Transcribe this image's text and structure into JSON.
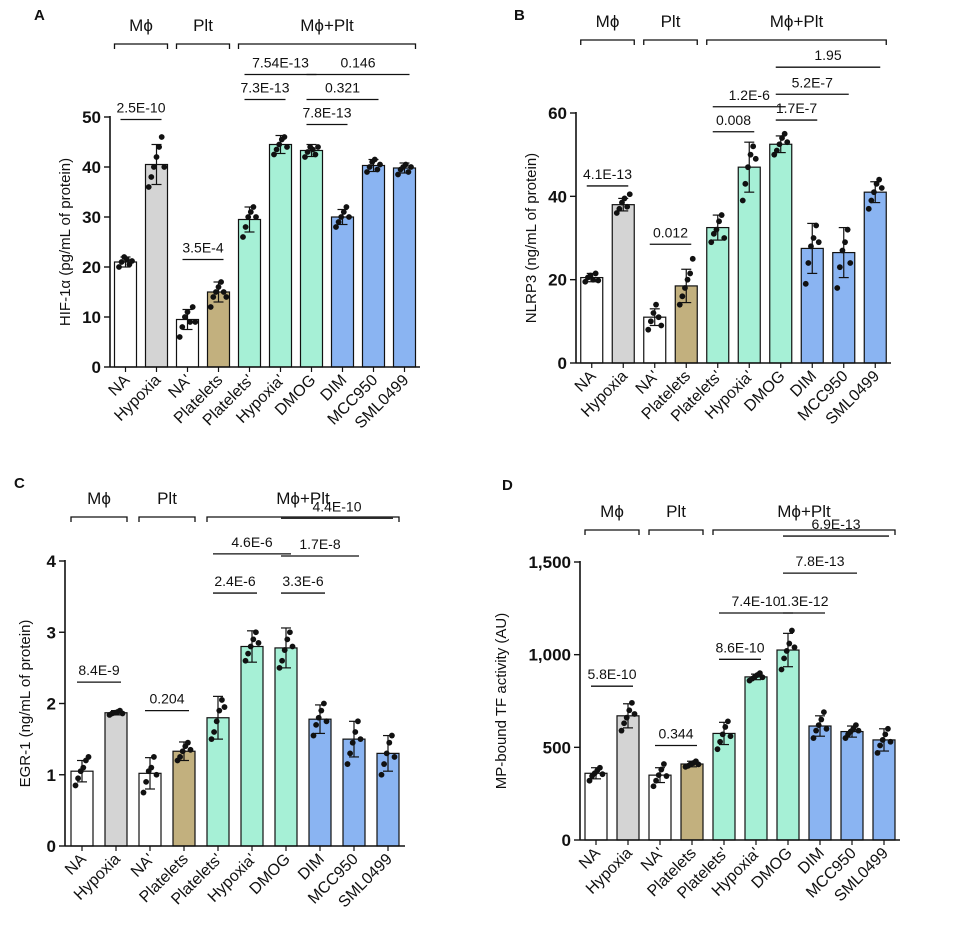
{
  "colors": {
    "white": "#ffffff",
    "gray": "#d4d4d4",
    "tan": "#c2b07e",
    "mint": "#a6f0d6",
    "blue": "#8ab4f2",
    "panel_letter": "#1f4e9c",
    "ink": "#111111"
  },
  "chart_data": [
    {
      "panel": "A",
      "type": "bar",
      "title": "",
      "ylabel": "HIF-1α (pg/mL of protein)",
      "ylim": [
        0,
        50
      ],
      "yticks": [
        0,
        10,
        20,
        30,
        40,
        50
      ],
      "ytick_labels": [
        "0",
        "10",
        "20",
        "30",
        "40",
        "50"
      ],
      "categories": [
        "NA",
        "Hypoxia",
        "NA'",
        "Platelets",
        "Platelets'",
        "Hypoxia'",
        "DMOG",
        "DIM",
        "MCC950",
        "SML0499"
      ],
      "colors": [
        "white",
        "gray",
        "white",
        "tan",
        "mint",
        "mint",
        "mint",
        "blue",
        "blue",
        "blue"
      ],
      "values": [
        21,
        40.5,
        9.5,
        15,
        29.5,
        44.5,
        43.3,
        30,
        40.3,
        39.8
      ],
      "errors": [
        1,
        4,
        2,
        2,
        2.5,
        1.8,
        1.2,
        1.5,
        1.2,
        1
      ],
      "points": [
        [
          20,
          21,
          22,
          21.5,
          20.5,
          21.2
        ],
        [
          36,
          38,
          40,
          42,
          44,
          46,
          40
        ],
        [
          6,
          8,
          10,
          11,
          9,
          12,
          9
        ],
        [
          12,
          14,
          15,
          16,
          17,
          15,
          14
        ],
        [
          26,
          28,
          30,
          31,
          32,
          30
        ],
        [
          42.5,
          43.5,
          44.5,
          45.5,
          46,
          44
        ],
        [
          42,
          43,
          44,
          43.5,
          42.5,
          44
        ],
        [
          28,
          29,
          30,
          31,
          32,
          30
        ],
        [
          39,
          40,
          41,
          41.5,
          39.5,
          40.5
        ],
        [
          38.5,
          39.5,
          40,
          40.5,
          39,
          40
        ]
      ],
      "groups": [
        {
          "label": "Mϕ",
          "from": 0,
          "to": 1
        },
        {
          "label": "Plt",
          "from": 2,
          "to": 3
        },
        {
          "label": "Mϕ+Plt",
          "from": 4,
          "to": 9
        }
      ],
      "comparisons": [
        {
          "label": "2.5E-10",
          "from": 0,
          "to": 1,
          "y": 49.5
        },
        {
          "label": "3.5E-4",
          "from": 2,
          "to": 3,
          "y": 21.5
        },
        {
          "label": "7.3E-13",
          "from": 4,
          "to": 5,
          "y": 53.5
        },
        {
          "label": "7.54E-13",
          "from": 4,
          "to": 6,
          "y": 58.5
        },
        {
          "label": "7.8E-13",
          "from": 6,
          "to": 7,
          "y": 48.5
        },
        {
          "label": "0.321",
          "from": 6,
          "to": 8,
          "y": 53.5
        },
        {
          "label": "0.146",
          "from": 6,
          "to": 9,
          "y": 58.5
        }
      ]
    },
    {
      "panel": "B",
      "type": "bar",
      "title": "",
      "ylabel": "NLRP3 (ng/mL of protein)",
      "ylim": [
        0,
        60
      ],
      "yticks": [
        0,
        20,
        40,
        60
      ],
      "ytick_labels": [
        "0",
        "20",
        "40",
        "60"
      ],
      "categories": [
        "NA",
        "Hypoxia",
        "NA'",
        "Platelets",
        "Platelets'",
        "Hypoxia'",
        "DMOG",
        "DIM",
        "MCC950",
        "SML0499"
      ],
      "colors": [
        "white",
        "gray",
        "white",
        "tan",
        "mint",
        "mint",
        "mint",
        "blue",
        "blue",
        "blue"
      ],
      "values": [
        20.5,
        38,
        11,
        18.5,
        32.5,
        47,
        52.5,
        27.5,
        26.5,
        41
      ],
      "errors": [
        1,
        1.5,
        2,
        4,
        3,
        6,
        2,
        6,
        6,
        2.5
      ],
      "points": [
        [
          19.5,
          20.5,
          21,
          20,
          21.5,
          19.8
        ],
        [
          36,
          37,
          38.5,
          39.5,
          37.5,
          40.5
        ],
        [
          8,
          10,
          12,
          14,
          11,
          9
        ],
        [
          14,
          16,
          18,
          20,
          21.5,
          25
        ],
        [
          29,
          31,
          32,
          34,
          35.5,
          30
        ],
        [
          39,
          43,
          47,
          50,
          52,
          49
        ],
        [
          50,
          51,
          52.5,
          54,
          55,
          53
        ],
        [
          19,
          24,
          28,
          30,
          33,
          29
        ],
        [
          18,
          23,
          27,
          29,
          32,
          24
        ],
        [
          37,
          39,
          41,
          43,
          44,
          42
        ]
      ],
      "groups": [
        {
          "label": "Mϕ",
          "from": 0,
          "to": 1
        },
        {
          "label": "Plt",
          "from": 2,
          "to": 3
        },
        {
          "label": "Mϕ+Plt",
          "from": 4,
          "to": 9
        }
      ],
      "comparisons": [
        {
          "label": "4.1E-13",
          "from": 0,
          "to": 1,
          "y": 42.5
        },
        {
          "label": "0.012",
          "from": 2,
          "to": 3,
          "y": 28.5
        },
        {
          "label": "0.008",
          "from": 4,
          "to": 5,
          "y": 55.5
        },
        {
          "label": "1.2E-6",
          "from": 4,
          "to": 6,
          "y": 61.5
        },
        {
          "label": "1.7E-7",
          "from": 6,
          "to": 7,
          "y": 58.3
        },
        {
          "label": "5.2E-7",
          "from": 6,
          "to": 8,
          "y": 64.5
        },
        {
          "label": "1.95",
          "from": 6,
          "to": 9,
          "y": 71
        }
      ]
    },
    {
      "panel": "C",
      "type": "bar",
      "title": "",
      "ylabel": "EGR-1 (ng/mL of protein)",
      "ylim": [
        0,
        4
      ],
      "yticks": [
        0,
        1,
        2,
        3,
        4
      ],
      "ytick_labels": [
        "0",
        "1",
        "2",
        "3",
        "4"
      ],
      "categories": [
        "NA",
        "Hypoxia",
        "NA'",
        "Platelets",
        "Platelets'",
        "Hypoxia'",
        "DMOG",
        "DIM",
        "MCC950",
        "SML0499"
      ],
      "colors": [
        "white",
        "gray",
        "white",
        "tan",
        "mint",
        "mint",
        "mint",
        "blue",
        "blue",
        "blue"
      ],
      "values": [
        1.05,
        1.87,
        1.02,
        1.33,
        1.8,
        2.8,
        2.78,
        1.78,
        1.5,
        1.3
      ],
      "errors": [
        0.15,
        0.03,
        0.22,
        0.13,
        0.3,
        0.22,
        0.28,
        0.2,
        0.25,
        0.25
      ],
      "points": [
        [
          0.85,
          0.95,
          1.05,
          1.1,
          1.2,
          1.25
        ],
        [
          1.84,
          1.86,
          1.87,
          1.88,
          1.9,
          1.86
        ],
        [
          0.75,
          0.9,
          1.05,
          1.1,
          1.25,
          1.0
        ],
        [
          1.2,
          1.25,
          1.33,
          1.4,
          1.45,
          1.35
        ],
        [
          1.5,
          1.6,
          1.75,
          1.9,
          2.05,
          1.95
        ],
        [
          2.6,
          2.7,
          2.8,
          2.9,
          3.0,
          2.85
        ],
        [
          2.5,
          2.6,
          2.75,
          2.9,
          3.0,
          2.8
        ],
        [
          1.55,
          1.7,
          1.8,
          1.9,
          2.0,
          1.75
        ],
        [
          1.15,
          1.3,
          1.45,
          1.6,
          1.75,
          1.5
        ],
        [
          1.0,
          1.15,
          1.3,
          1.45,
          1.55,
          1.25
        ]
      ],
      "groups": [
        {
          "label": "Mϕ",
          "from": 0,
          "to": 1
        },
        {
          "label": "Plt",
          "from": 2,
          "to": 3
        },
        {
          "label": "Mϕ+Plt",
          "from": 4,
          "to": 9
        }
      ],
      "comparisons": [
        {
          "label": "8.4E-9",
          "from": 0,
          "to": 1,
          "y": 2.3
        },
        {
          "label": "0.204",
          "from": 2,
          "to": 3,
          "y": 1.9
        },
        {
          "label": "2.4E-6",
          "from": 4,
          "to": 5,
          "y": 3.55
        },
        {
          "label": "4.6E-6",
          "from": 4,
          "to": 6,
          "y": 4.1
        },
        {
          "label": "3.3E-6",
          "from": 6,
          "to": 7,
          "y": 3.55
        },
        {
          "label": "1.7E-8",
          "from": 6,
          "to": 8,
          "y": 4.07
        },
        {
          "label": "4.4E-10",
          "from": 6,
          "to": 9,
          "y": 4.6
        }
      ]
    },
    {
      "panel": "D",
      "type": "bar",
      "title": "",
      "ylabel": "MP-bound TF activity (AU)",
      "ylim": [
        0,
        1500
      ],
      "yticks": [
        0,
        500,
        1000,
        1500
      ],
      "ytick_labels": [
        "0",
        "500",
        "1,000",
        "1,500"
      ],
      "categories": [
        "NA",
        "Hypoxia",
        "NA'",
        "Platelets",
        "Platelets'",
        "Hypoxia'",
        "DMOG",
        "DIM",
        "MCC950",
        "SML0499"
      ],
      "colors": [
        "white",
        "gray",
        "white",
        "tan",
        "mint",
        "mint",
        "mint",
        "blue",
        "blue",
        "blue"
      ],
      "values": [
        360,
        670,
        350,
        410,
        575,
        880,
        1025,
        615,
        585,
        540
      ],
      "errors": [
        30,
        65,
        40,
        15,
        60,
        15,
        90,
        55,
        30,
        60
      ],
      "points": [
        [
          320,
          345,
          360,
          375,
          390,
          355
        ],
        [
          590,
          630,
          660,
          700,
          740,
          680
        ],
        [
          290,
          320,
          350,
          380,
          410,
          345
        ],
        [
          395,
          400,
          410,
          415,
          425,
          408
        ],
        [
          490,
          530,
          570,
          610,
          640,
          560
        ],
        [
          860,
          870,
          880,
          890,
          900,
          878
        ],
        [
          920,
          980,
          1020,
          1060,
          1130,
          1040
        ],
        [
          550,
          590,
          620,
          650,
          690,
          600
        ],
        [
          550,
          570,
          585,
          600,
          620,
          590
        ],
        [
          470,
          510,
          540,
          570,
          600,
          530
        ]
      ],
      "groups": [
        {
          "label": "Mϕ",
          "from": 0,
          "to": 1
        },
        {
          "label": "Plt",
          "from": 2,
          "to": 3
        },
        {
          "label": "Mϕ+Plt",
          "from": 4,
          "to": 9
        }
      ],
      "comparisons": [
        {
          "label": "5.8E-10",
          "from": 0,
          "to": 1,
          "y": 830
        },
        {
          "label": "0.344",
          "from": 2,
          "to": 3,
          "y": 510
        },
        {
          "label": "8.6E-10",
          "from": 4,
          "to": 5,
          "y": 975
        },
        {
          "label": "7.4E-10",
          "from": 4,
          "to": 6,
          "y": 1225
        },
        {
          "label": "1.3E-12",
          "from": 6,
          "to": 7,
          "y": 1225
        },
        {
          "label": "7.8E-13",
          "from": 6,
          "to": 8,
          "y": 1440
        },
        {
          "label": "6.9E-13",
          "from": 6,
          "to": 9,
          "y": 1640
        }
      ]
    }
  ]
}
